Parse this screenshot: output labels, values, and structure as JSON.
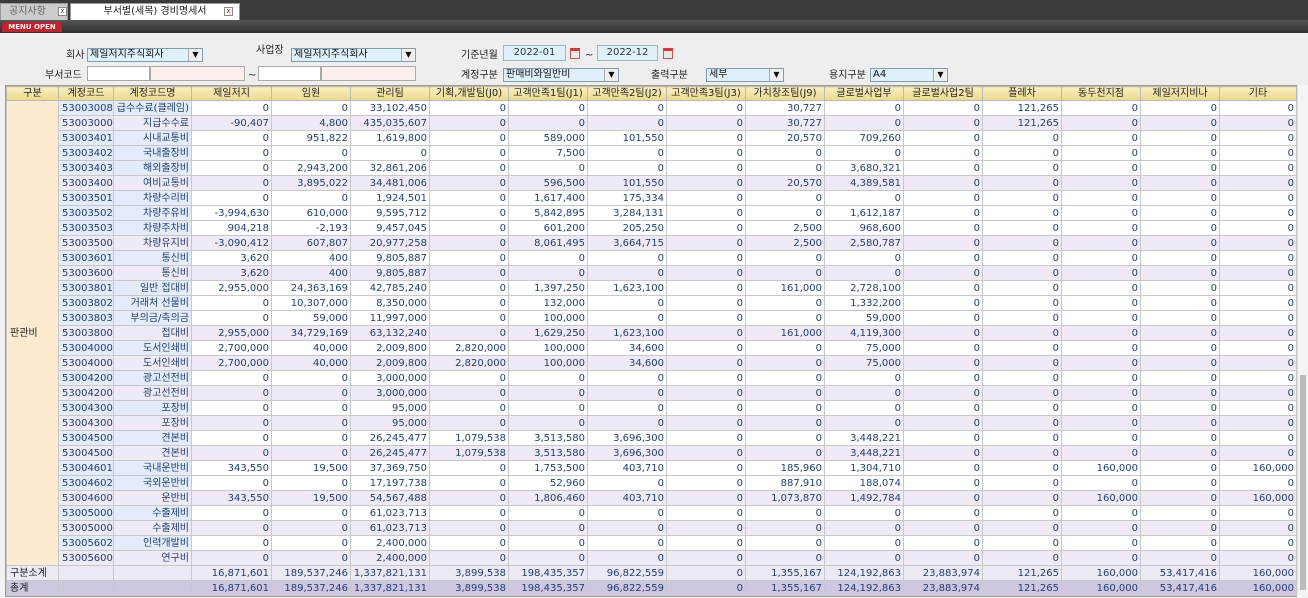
{
  "tabs": [
    {
      "label": "공지사항",
      "active": false
    },
    {
      "label": "부서별(세목) 경비명세서",
      "active": true
    }
  ],
  "menu_button": "MENU OPEN",
  "filters": {
    "company_label": "회사",
    "company_value": "제일저지주식회사",
    "site_label": "사업장",
    "site_value": "제일저지주식회사",
    "period_label": "기준년월",
    "period_from": "2022-01",
    "period_to": "2022-12",
    "tilde": "~",
    "dept_label": "부서코드",
    "account_type_label": "계정구분",
    "account_type_value": "판매비와일반비",
    "output_label": "출력구분",
    "output_value": "세부",
    "paper_label": "용지구분",
    "paper_value": "A4"
  },
  "table": {
    "columns": [
      "구분",
      "계정코드",
      "계정코드명",
      "제일저지",
      "임원",
      "관리팀",
      "기획,개발팀(J0)",
      "고객만족1팀(J1)",
      "고객만족2팀(J2)",
      "고객만족3팀(J3)",
      "가치창조팀(J9)",
      "글로벌사업부",
      "글로벌사업2팀",
      "플레차",
      "동두천지점",
      "제일저지비나",
      "기타"
    ],
    "group": "판관비",
    "rows": [
      {
        "code": "53003008",
        "name": "급수수료(클레임)",
        "sub": false,
        "v": [
          "0",
          "0",
          "33,102,450",
          "0",
          "0",
          "0",
          "0",
          "30,727",
          "0",
          "0",
          "121,265",
          "0",
          "0",
          "0"
        ]
      },
      {
        "code": "53003000",
        "name": "지급수수료",
        "sub": true,
        "v": [
          "-90,407",
          "4,800",
          "435,035,607",
          "0",
          "0",
          "0",
          "0",
          "30,727",
          "0",
          "0",
          "121,265",
          "0",
          "0",
          "0"
        ]
      },
      {
        "code": "53003401",
        "name": "시내교통비",
        "sub": false,
        "v": [
          "0",
          "951,822",
          "1,619,800",
          "0",
          "589,000",
          "101,550",
          "0",
          "20,570",
          "709,260",
          "0",
          "0",
          "0",
          "0",
          "0"
        ]
      },
      {
        "code": "53003402",
        "name": "국내출장비",
        "sub": false,
        "v": [
          "0",
          "0",
          "0",
          "0",
          "7,500",
          "0",
          "0",
          "0",
          "0",
          "0",
          "0",
          "0",
          "0",
          "0"
        ]
      },
      {
        "code": "53003403",
        "name": "해외출장비",
        "sub": false,
        "v": [
          "0",
          "2,943,200",
          "32,861,206",
          "0",
          "0",
          "0",
          "0",
          "0",
          "3,680,321",
          "0",
          "0",
          "0",
          "0",
          "0"
        ]
      },
      {
        "code": "53003400",
        "name": "여비교통비",
        "sub": true,
        "v": [
          "0",
          "3,895,022",
          "34,481,006",
          "0",
          "596,500",
          "101,550",
          "0",
          "20,570",
          "4,389,581",
          "0",
          "0",
          "0",
          "0",
          "0"
        ]
      },
      {
        "code": "53003501",
        "name": "차량수리비",
        "sub": false,
        "v": [
          "0",
          "0",
          "1,924,501",
          "0",
          "1,617,400",
          "175,334",
          "0",
          "0",
          "0",
          "0",
          "0",
          "0",
          "0",
          "0"
        ]
      },
      {
        "code": "53003502",
        "name": "차량주유비",
        "sub": false,
        "v": [
          "-3,994,630",
          "610,000",
          "9,595,712",
          "0",
          "5,842,895",
          "3,284,131",
          "0",
          "0",
          "1,612,187",
          "0",
          "0",
          "0",
          "0",
          "0"
        ]
      },
      {
        "code": "53003503",
        "name": "차량주차비",
        "sub": false,
        "v": [
          "904,218",
          "-2,193",
          "9,457,045",
          "0",
          "601,200",
          "205,250",
          "0",
          "2,500",
          "968,600",
          "0",
          "0",
          "0",
          "0",
          "0"
        ]
      },
      {
        "code": "53003500",
        "name": "차량유지비",
        "sub": true,
        "v": [
          "-3,090,412",
          "607,807",
          "20,977,258",
          "0",
          "8,061,495",
          "3,664,715",
          "0",
          "2,500",
          "2,580,787",
          "0",
          "0",
          "0",
          "0",
          "0"
        ]
      },
      {
        "code": "53003601",
        "name": "통신비",
        "sub": false,
        "v": [
          "3,620",
          "400",
          "9,805,887",
          "0",
          "0",
          "0",
          "0",
          "0",
          "0",
          "0",
          "0",
          "0",
          "0",
          "0"
        ]
      },
      {
        "code": "53003600",
        "name": "통신비",
        "sub": true,
        "v": [
          "3,620",
          "400",
          "9,805,887",
          "0",
          "0",
          "0",
          "0",
          "0",
          "0",
          "0",
          "0",
          "0",
          "0",
          "0"
        ]
      },
      {
        "code": "53003801",
        "name": "일반 접대비",
        "sub": false,
        "v": [
          "2,955,000",
          "24,363,169",
          "42,785,240",
          "0",
          "1,397,250",
          "1,623,100",
          "0",
          "161,000",
          "2,728,100",
          "0",
          "0",
          "0",
          "0",
          "0"
        ]
      },
      {
        "code": "53003802",
        "name": "거래처 선물비",
        "sub": false,
        "v": [
          "0",
          "10,307,000",
          "8,350,000",
          "0",
          "132,000",
          "0",
          "0",
          "0",
          "1,332,200",
          "0",
          "0",
          "0",
          "0",
          "0"
        ]
      },
      {
        "code": "53003803",
        "name": "부의금/축의금",
        "sub": false,
        "v": [
          "0",
          "59,000",
          "11,997,000",
          "0",
          "100,000",
          "0",
          "0",
          "0",
          "59,000",
          "0",
          "0",
          "0",
          "0",
          "0"
        ]
      },
      {
        "code": "53003800",
        "name": "접대비",
        "sub": true,
        "v": [
          "2,955,000",
          "34,729,169",
          "63,132,240",
          "0",
          "1,629,250",
          "1,623,100",
          "0",
          "161,000",
          "4,119,300",
          "0",
          "0",
          "0",
          "0",
          "0"
        ]
      },
      {
        "code": "53004000",
        "name": "도서인쇄비",
        "sub": false,
        "v": [
          "2,700,000",
          "40,000",
          "2,009,800",
          "2,820,000",
          "100,000",
          "34,600",
          "0",
          "0",
          "75,000",
          "0",
          "0",
          "0",
          "0",
          "0"
        ]
      },
      {
        "code": "53004000",
        "name": "도서인쇄비",
        "sub": true,
        "v": [
          "2,700,000",
          "40,000",
          "2,009,800",
          "2,820,000",
          "100,000",
          "34,600",
          "0",
          "0",
          "75,000",
          "0",
          "0",
          "0",
          "0",
          "0"
        ]
      },
      {
        "code": "53004200",
        "name": "광고선전비",
        "sub": false,
        "v": [
          "0",
          "0",
          "3,000,000",
          "0",
          "0",
          "0",
          "0",
          "0",
          "0",
          "0",
          "0",
          "0",
          "0",
          "0"
        ]
      },
      {
        "code": "53004200",
        "name": "광고선전비",
        "sub": true,
        "v": [
          "0",
          "0",
          "3,000,000",
          "0",
          "0",
          "0",
          "0",
          "0",
          "0",
          "0",
          "0",
          "0",
          "0",
          "0"
        ]
      },
      {
        "code": "53004300",
        "name": "포장비",
        "sub": false,
        "v": [
          "0",
          "0",
          "95,000",
          "0",
          "0",
          "0",
          "0",
          "0",
          "0",
          "0",
          "0",
          "0",
          "0",
          "0"
        ]
      },
      {
        "code": "53004300",
        "name": "포장비",
        "sub": true,
        "v": [
          "0",
          "0",
          "95,000",
          "0",
          "0",
          "0",
          "0",
          "0",
          "0",
          "0",
          "0",
          "0",
          "0",
          "0"
        ]
      },
      {
        "code": "53004500",
        "name": "견본비",
        "sub": false,
        "v": [
          "0",
          "0",
          "26,245,477",
          "1,079,538",
          "3,513,580",
          "3,696,300",
          "0",
          "0",
          "3,448,221",
          "0",
          "0",
          "0",
          "0",
          "0"
        ]
      },
      {
        "code": "53004500",
        "name": "견본비",
        "sub": true,
        "v": [
          "0",
          "0",
          "26,245,477",
          "1,079,538",
          "3,513,580",
          "3,696,300",
          "0",
          "0",
          "3,448,221",
          "0",
          "0",
          "0",
          "0",
          "0"
        ]
      },
      {
        "code": "53004601",
        "name": "국내운반비",
        "sub": false,
        "v": [
          "343,550",
          "19,500",
          "37,369,750",
          "0",
          "1,753,500",
          "403,710",
          "0",
          "185,960",
          "1,304,710",
          "0",
          "0",
          "160,000",
          "0",
          "160,000"
        ]
      },
      {
        "code": "53004602",
        "name": "국외운반비",
        "sub": false,
        "v": [
          "0",
          "0",
          "17,197,738",
          "0",
          "52,960",
          "0",
          "0",
          "887,910",
          "188,074",
          "0",
          "0",
          "0",
          "0",
          "0"
        ]
      },
      {
        "code": "53004600",
        "name": "운반비",
        "sub": true,
        "v": [
          "343,550",
          "19,500",
          "54,567,488",
          "0",
          "1,806,460",
          "403,710",
          "0",
          "1,073,870",
          "1,492,784",
          "0",
          "0",
          "160,000",
          "0",
          "160,000"
        ]
      },
      {
        "code": "53005000",
        "name": "수출제비",
        "sub": false,
        "v": [
          "0",
          "0",
          "61,023,713",
          "0",
          "0",
          "0",
          "0",
          "0",
          "0",
          "0",
          "0",
          "0",
          "0",
          "0"
        ]
      },
      {
        "code": "53005000",
        "name": "수출제비",
        "sub": true,
        "v": [
          "0",
          "0",
          "61,023,713",
          "0",
          "0",
          "0",
          "0",
          "0",
          "0",
          "0",
          "0",
          "0",
          "0",
          "0"
        ]
      },
      {
        "code": "53005602",
        "name": "인력개발비",
        "sub": false,
        "v": [
          "0",
          "0",
          "2,400,000",
          "0",
          "0",
          "0",
          "0",
          "0",
          "0",
          "0",
          "0",
          "0",
          "0",
          "0"
        ]
      },
      {
        "code": "53005600",
        "name": "연구비",
        "sub": true,
        "v": [
          "0",
          "0",
          "2,400,000",
          "0",
          "0",
          "0",
          "0",
          "0",
          "0",
          "0",
          "0",
          "0",
          "0",
          "0"
        ]
      }
    ],
    "subtotal": {
      "label": "구분소계",
      "v": [
        "16,871,601",
        "189,537,246",
        "1,337,821,131",
        "3,899,538",
        "198,435,357",
        "96,822,559",
        "0",
        "1,355,167",
        "124,192,863",
        "23,883,974",
        "121,265",
        "160,000",
        "53,417,416",
        "160,000"
      ]
    },
    "total": {
      "label": "총계",
      "v": [
        "16,871,601",
        "189,537,246",
        "1,337,821,131",
        "3,899,538",
        "198,435,357",
        "96,822,559",
        "0",
        "1,355,167",
        "124,192,863",
        "23,883,974",
        "121,265",
        "160,000",
        "53,417,416",
        "160,000"
      ]
    }
  },
  "colors": {
    "header": "#ecd98a",
    "group_cell": "#fdebcf",
    "code_cell": "#e3ecfb",
    "subtotal_row": "#efeaf6",
    "total_row": "#cfc6e0",
    "value_text": "#1f3f7a"
  }
}
